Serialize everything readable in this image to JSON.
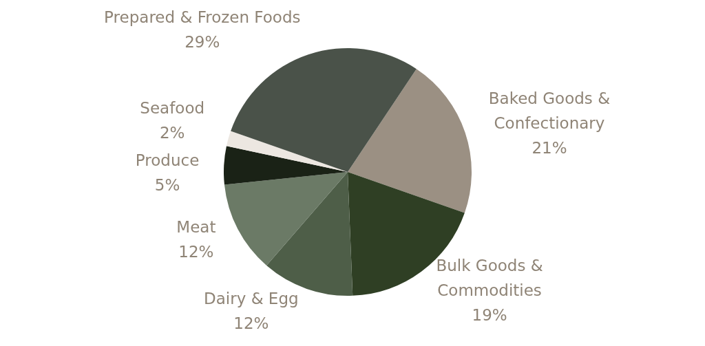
{
  "chart_data": {
    "type": "pie",
    "categories": [
      "Baked Goods & Confectionary",
      "Bulk Goods & Commodities",
      "Dairy & Egg",
      "Meat",
      "Produce",
      "Seafood",
      "Prepared & Frozen Foods"
    ],
    "values": [
      21,
      19,
      12,
      12,
      5,
      2,
      29
    ],
    "value_labels": [
      "21%",
      "19%",
      "12%",
      "12%",
      "5%",
      "2%",
      "29%"
    ],
    "colors": [
      "#9b9083",
      "#2f3f24",
      "#4e5e48",
      "#6b7a66",
      "#1a2216",
      "#ece7e1",
      "#4a5249"
    ],
    "legend": false
  }
}
